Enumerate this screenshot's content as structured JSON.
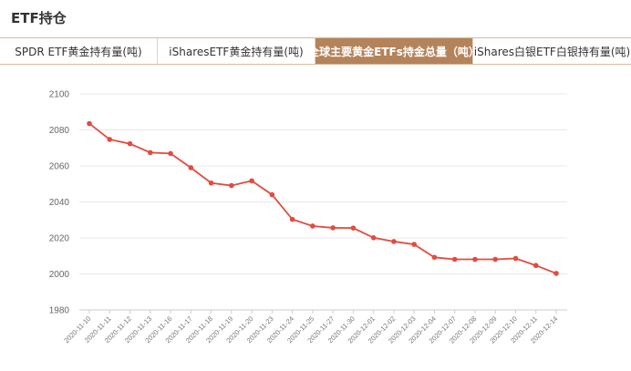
{
  "page": {
    "title": "ETF持仓"
  },
  "tabs": [
    {
      "label": "SPDR ETF黄金持有量(吨)",
      "active": false
    },
    {
      "label": "iSharesETF黄金持有量(吨)",
      "active": false
    },
    {
      "label": "全球主要黄金ETFs持金总量（吨）",
      "active": true
    },
    {
      "label": "iShares白银ETF白银持有量(吨)",
      "active": false
    }
  ],
  "colors": {
    "accent": "#b5835a",
    "line": "#e24b3f",
    "grid": "#e8e8e8"
  },
  "chart_data": {
    "type": "line",
    "title": "",
    "xlabel": "",
    "ylabel": "",
    "ylim": [
      1980,
      2100
    ],
    "yticks": [
      1980,
      2000,
      2020,
      2040,
      2060,
      2080,
      2100
    ],
    "grid": true,
    "categories": [
      "2020-11-10",
      "2020-11-11",
      "2020-11-12",
      "2020-11-13",
      "2020-11-16",
      "2020-11-17",
      "2020-11-18",
      "2020-11-19",
      "2020-11-20",
      "2020-11-23",
      "2020-11-24",
      "2020-11-25",
      "2020-11-27",
      "2020-11-30",
      "2020-12-01",
      "2020-12-02",
      "2020-12-03",
      "2020-12-04",
      "2020-12-07",
      "2020-12-08",
      "2020-12-09",
      "2020-12-10",
      "2020-12-11",
      "2020-12-14"
    ],
    "series": [
      {
        "values": [
          2083.5,
          2074.7,
          2072.3,
          2067.4,
          2066.9,
          2059.0,
          2050.5,
          2049.1,
          2051.7,
          2044.0,
          2030.3,
          2026.6,
          2025.6,
          2025.5,
          2020.1,
          2018.0,
          2016.4,
          2009.2,
          2008.1,
          2008.1,
          2008.1,
          2008.6,
          2004.7,
          2000.3
        ]
      }
    ]
  }
}
